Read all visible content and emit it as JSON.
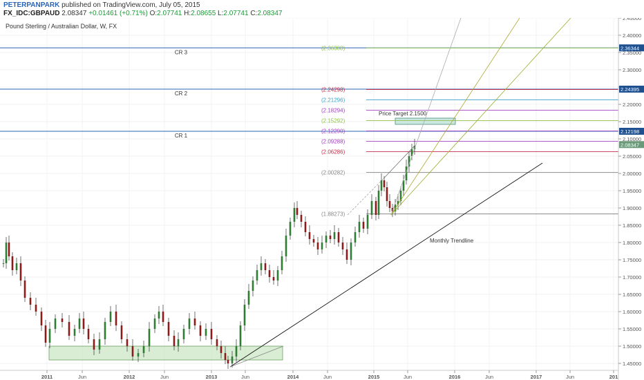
{
  "header": {
    "author": "PETERPANPARK",
    "published_text": "published on TradingView.com, July 05, 2015",
    "symbol": "FX_IDC:GBPAUD",
    "last": "2.08347",
    "change": "+0.01461 (+0.71%)",
    "o_label": "O:",
    "o_value": "2.07741",
    "h_label": "H:",
    "h_value": "2.08655",
    "l_label": "L:",
    "l_value": "2.07741",
    "c_label": "C:",
    "c_value": "2.08347"
  },
  "chart_data": {
    "type": "candlestick",
    "title": "Pound Sterling / Australian Dollar, W, FX",
    "ylim": [
      1.43,
      2.45
    ],
    "y_ticks": [
      "1.45000",
      "1.50000",
      "1.55000",
      "1.60000",
      "1.65000",
      "1.70000",
      "1.75000",
      "1.80000",
      "1.85000",
      "1.90000",
      "1.95000",
      "2.00000",
      "2.05000",
      "2.10000",
      "2.15000",
      "2.20000",
      "2.25000",
      "2.30000",
      "2.35000",
      "2.40000",
      "2.45000"
    ],
    "x_ticks": [
      "2011",
      "Jun",
      "2012",
      "Jun",
      "2013",
      "Jun",
      "2014",
      "Jun",
      "2015",
      "Jun",
      "2016",
      "Jun",
      "2017",
      "Jun",
      "201"
    ],
    "horizontal_levels": [
      {
        "label": "CR 3",
        "value": 2.36344,
        "badge": "2.36344",
        "color": "#2a64b4"
      },
      {
        "label": "CR 2",
        "value": 2.24395,
        "badge": "2.24395",
        "color": "#2a64b4"
      },
      {
        "label": "CR 1",
        "value": 2.12198,
        "badge": "2.12198",
        "color": "#2a64b4"
      }
    ],
    "current_price": {
      "value": 2.08347,
      "badge": "2.08347",
      "color": "#6b9a7a"
    },
    "fib_levels": [
      {
        "label": "(2.36308)",
        "value": 2.36308,
        "color": "#8fc04a"
      },
      {
        "label": "(2.24298)",
        "value": 2.24298,
        "color": "#c0304a"
      },
      {
        "label": "(2.21296)",
        "value": 2.21296,
        "color": "#3aa0c8"
      },
      {
        "label": "(2.18294)",
        "value": 2.18294,
        "color": "#a040c0"
      },
      {
        "label": "(2.15292)",
        "value": 2.15292,
        "color": "#8fc04a"
      },
      {
        "label": "(2.12290)",
        "value": 2.1229,
        "color": "#a040c0"
      },
      {
        "label": "(2.09288)",
        "value": 2.09288,
        "color": "#a040c0"
      },
      {
        "label": "(2.06286)",
        "value": 2.06286,
        "color": "#c0304a"
      },
      {
        "label": "(2.00282)",
        "value": 2.00282,
        "color": "#888888"
      },
      {
        "label": "(1.88273)",
        "value": 1.88273,
        "color": "#888888"
      }
    ],
    "annotations": {
      "price_target": "Price Target 2.1500",
      "trendline": "Monthly Trendline"
    }
  }
}
